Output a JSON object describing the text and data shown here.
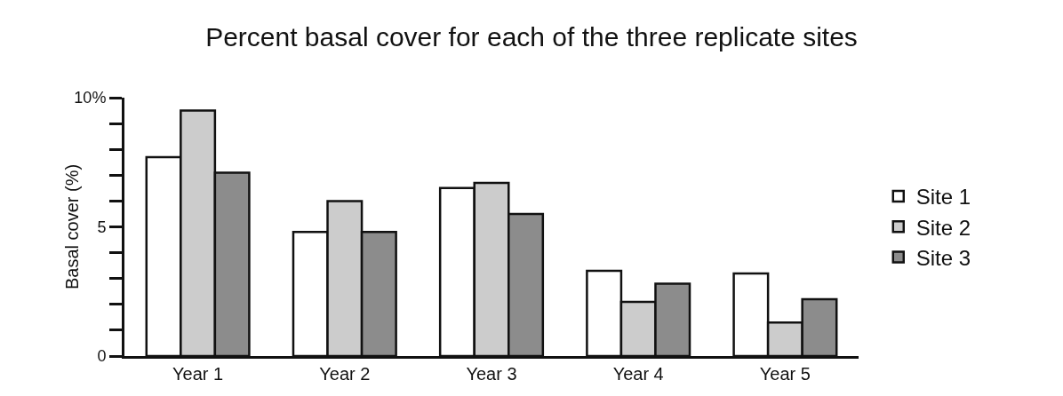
{
  "chart_data": {
    "type": "bar",
    "title": "Percent basal cover for each of the three replicate sites",
    "ylabel": "Basal cover (%)",
    "categories": [
      "Year 1",
      "Year 2",
      "Year 3",
      "Year 4",
      "Year 5"
    ],
    "series": [
      {
        "name": "Site 1",
        "color": "#ffffff",
        "values": [
          7.7,
          4.8,
          6.5,
          3.3,
          3.2
        ]
      },
      {
        "name": "Site 2",
        "color": "#cccccc",
        "values": [
          9.5,
          6.0,
          6.7,
          2.1,
          1.3
        ]
      },
      {
        "name": "Site 3",
        "color": "#8c8c8c",
        "values": [
          7.1,
          4.8,
          5.5,
          2.8,
          2.2
        ]
      }
    ],
    "ylim": [
      0,
      10
    ],
    "yticks": [
      0,
      {
        "value": 1,
        "label": null
      },
      {
        "value": 2,
        "label": null
      },
      {
        "value": 3,
        "label": null
      },
      {
        "value": 4,
        "label": null
      },
      5,
      {
        "value": 6,
        "label": null
      },
      {
        "value": 7,
        "label": null
      },
      {
        "value": 8,
        "label": null
      },
      {
        "value": 9,
        "label": null
      },
      {
        "value": 10,
        "label": "10%"
      }
    ],
    "grid": false,
    "legend": "right"
  }
}
